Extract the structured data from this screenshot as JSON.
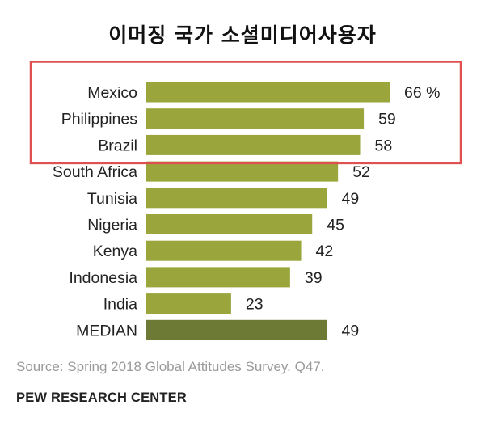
{
  "title": "이머징 국가 소셜미디어사용자",
  "chart_data": {
    "type": "bar",
    "orientation": "horizontal",
    "categories": [
      "Mexico",
      "Philippines",
      "Brazil",
      "South Africa",
      "Tunisia",
      "Nigeria",
      "Kenya",
      "Indonesia",
      "India",
      "MEDIAN"
    ],
    "values": [
      66,
      59,
      58,
      52,
      49,
      45,
      42,
      39,
      23,
      49
    ],
    "value_labels": [
      "66 %",
      "59",
      "58",
      "52",
      "49",
      "45",
      "42",
      "39",
      "23",
      "49"
    ],
    "xlim": [
      0,
      66
    ],
    "grid": false,
    "colors": {
      "bar": "#9aa63c",
      "median_bar": "#6d7a36",
      "highlight_box": "#e05050"
    },
    "highlighted_categories": [
      "Mexico",
      "Philippines",
      "Brazil"
    ]
  },
  "source": "Source: Spring 2018 Global Attitudes Survey. Q47.",
  "organization": "PEW RESEARCH CENTER"
}
